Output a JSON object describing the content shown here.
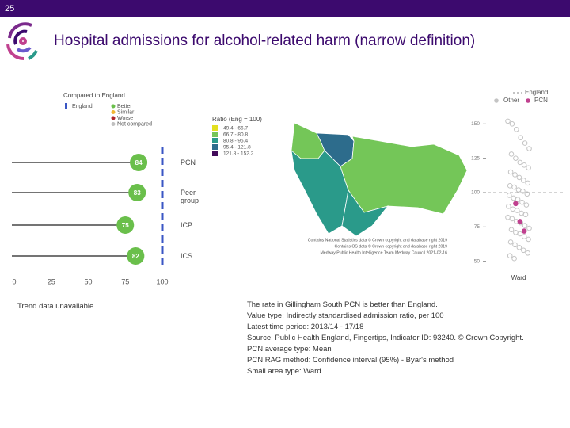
{
  "slide_number": "25",
  "title": "Hospital admissions for alcohol-related harm (narrow definition)",
  "chart_data": {
    "type": "lollipop",
    "legend_title": "Compared to England",
    "reference_name": "England",
    "reference_value": 100,
    "reference_color": "#3a56c4",
    "categories": [
      "PCN",
      "Peer group",
      "ICP",
      "ICS"
    ],
    "values": [
      84,
      83,
      75,
      82
    ],
    "color": "#6abf4b",
    "legend": [
      {
        "name": "Better",
        "color": "#6abf4b"
      },
      {
        "name": "Similar",
        "color": "#f2b632"
      },
      {
        "name": "Worse",
        "color": "#b0262b"
      },
      {
        "name": "Not compared",
        "color": "#bfbfbf"
      }
    ],
    "xlim": [
      0,
      100
    ],
    "xticks": [
      0,
      25,
      50,
      75,
      100
    ]
  },
  "map": {
    "legend_title": "Ratio (Eng = 100)",
    "bins": [
      {
        "label": "49.4 - 66.7",
        "color": "#e3e01f"
      },
      {
        "label": "66.7 - 80.8",
        "color": "#74c658"
      },
      {
        "label": "80.8 - 95.4",
        "color": "#2a9a8a"
      },
      {
        "label": "95.4 - 121.8",
        "color": "#2d6c8c"
      },
      {
        "label": "121.8 - 152.2",
        "color": "#420b5a"
      }
    ],
    "credits": [
      "Contains National Statistics data © Crown copyright and database right 2019",
      "Contains OS data © Crown copyright and database right 2019",
      "Medway Public Health Intelligence Team Medway Council 2021-02-16"
    ]
  },
  "strip_chart": {
    "type": "strip",
    "x_label": "Ward",
    "ylim": [
      40,
      160
    ],
    "yticks": [
      50,
      75,
      100,
      125,
      150
    ],
    "reference_name": "England",
    "reference_value": 100,
    "series": [
      {
        "name": "Other",
        "color": "#c4c4c4",
        "values": [
          152,
          150,
          146,
          140,
          136,
          132,
          128,
          125,
          122,
          120,
          118,
          115,
          113,
          111,
          109,
          107,
          105,
          104,
          102,
          101,
          99,
          98,
          96,
          95,
          93,
          91,
          90,
          88,
          87,
          85,
          84,
          82,
          81,
          79,
          78,
          76,
          74,
          73,
          71,
          70,
          68,
          66,
          64,
          62,
          60,
          58,
          56,
          54,
          52
        ]
      },
      {
        "name": "PCN",
        "color": "#c0418f",
        "values": [
          92,
          79,
          72
        ]
      }
    ]
  },
  "trend_text": "Trend data unavailable",
  "notes": [
    "The rate in Gillingham South PCN is better than England.",
    "Value type: Indirectly standardised admission ratio, per 100",
    "Latest time period: 2013/14 - 17/18",
    "Source: Public Health England, Fingertips, Indicator ID: 93240. © Crown Copyright.",
    "PCN average type: Mean",
    "PCN RAG method: Confidence interval (95%) - Byar's method",
    "Small area type: Ward"
  ]
}
